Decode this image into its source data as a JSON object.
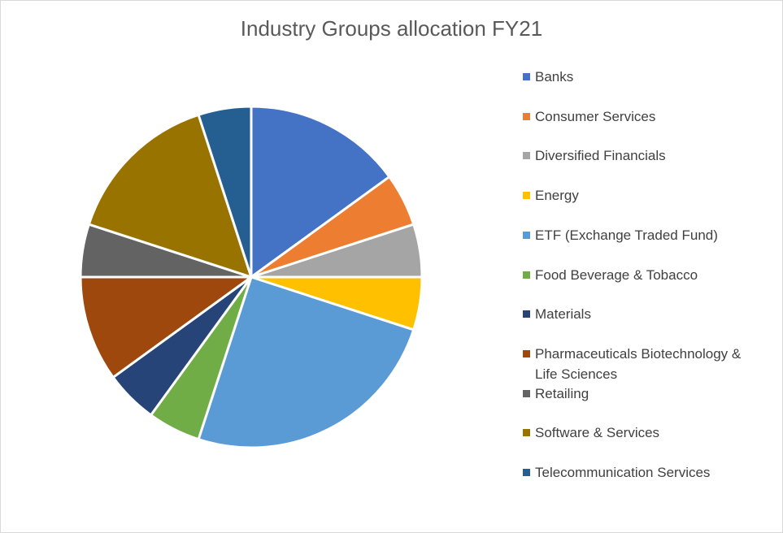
{
  "chart_data": {
    "type": "pie",
    "title": "Industry Groups allocation FY21",
    "categories": [
      "Banks",
      "Consumer Services",
      "Diversified Financials",
      "Energy",
      "ETF (Exchange Traded Fund)",
      "Food Beverage & Tobacco",
      "Materials",
      "Pharmaceuticals Biotechnology & Life Sciences",
      "Retailing",
      "Software & Services",
      "Telecommunication Services"
    ],
    "values": [
      15,
      5,
      5,
      5,
      25,
      5,
      5,
      10,
      5,
      15,
      5
    ],
    "colors": [
      "#4472c4",
      "#ed7d31",
      "#a5a5a5",
      "#ffc000",
      "#5b9bd5",
      "#70ad47",
      "#264478",
      "#9e480e",
      "#636363",
      "#997300",
      "#255e91"
    ],
    "legend_position": "right"
  }
}
